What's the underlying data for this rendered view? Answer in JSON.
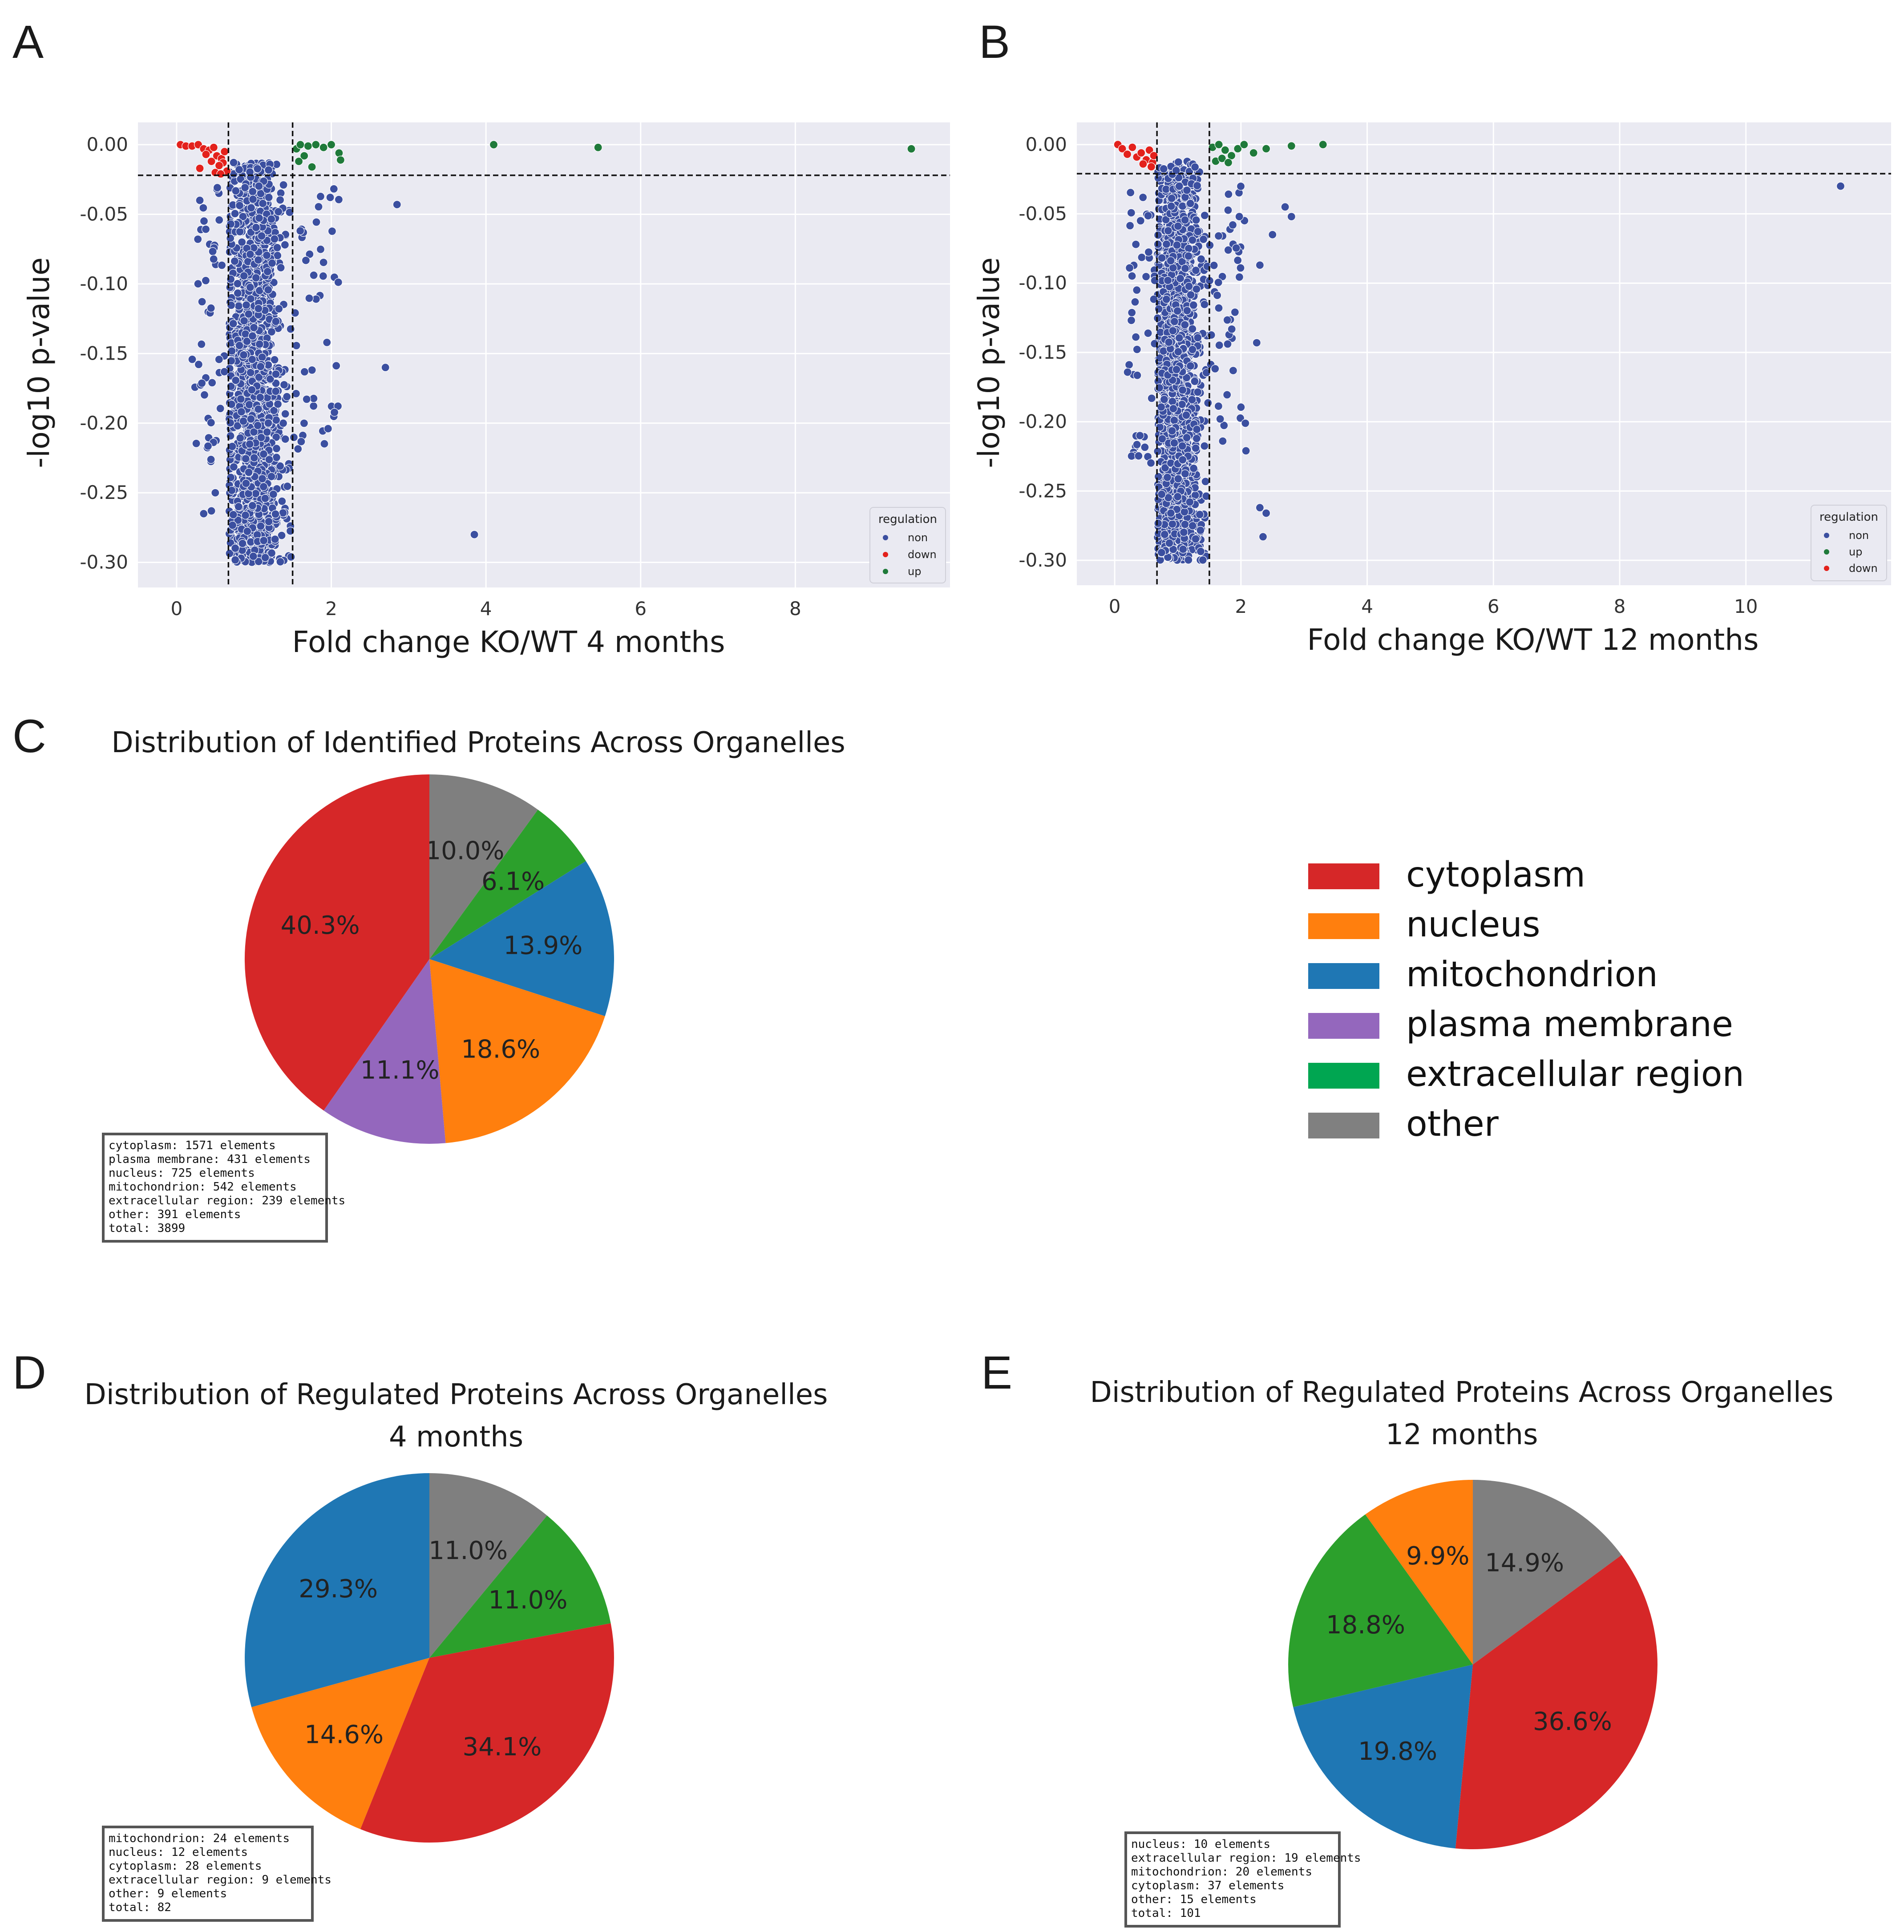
{
  "panel_letters": [
    "A",
    "B",
    "C",
    "D",
    "E"
  ],
  "chart_data": [
    {
      "id": "A",
      "type": "scatter",
      "xlabel": "Fold change KO/WT 4 months",
      "ylabel": "-log10 p-value",
      "xlim": [
        -0.5,
        10.0
      ],
      "ylim": [
        -0.318,
        0.016
      ],
      "xticks": [
        0,
        2,
        4,
        6,
        8
      ],
      "xtick_labels": [
        "0",
        "2",
        "4",
        "6",
        "8"
      ],
      "yticks": [
        0.0,
        -0.05,
        -0.1,
        -0.15,
        -0.2,
        -0.25,
        -0.3
      ],
      "ytick_labels": [
        "0.00",
        "-0.05",
        "-0.10",
        "-0.15",
        "-0.20",
        "-0.25",
        "-0.30"
      ],
      "thresholds": {
        "x_low": 0.67,
        "x_high": 1.5,
        "y": -0.022
      },
      "legend": {
        "title": "regulation",
        "entries": [
          "non",
          "down",
          "up"
        ],
        "position": "lower-right"
      },
      "series": [
        {
          "name": "non",
          "color": "#3b4fa0"
        },
        {
          "name": "down",
          "color": "#e3211c",
          "points": [
            [
              0.05,
              0.0
            ],
            [
              0.12,
              -0.001
            ],
            [
              0.2,
              -0.001
            ],
            [
              0.28,
              0.0
            ],
            [
              0.35,
              -0.003
            ],
            [
              0.42,
              -0.004
            ],
            [
              0.48,
              -0.002
            ],
            [
              0.52,
              -0.008
            ],
            [
              0.58,
              -0.01
            ],
            [
              0.6,
              -0.013
            ],
            [
              0.55,
              -0.015
            ],
            [
              0.45,
              -0.012
            ],
            [
              0.38,
              -0.007
            ],
            [
              0.62,
              -0.005
            ],
            [
              0.65,
              -0.019
            ],
            [
              0.3,
              -0.017
            ],
            [
              0.5,
              -0.02
            ],
            [
              0.57,
              -0.021
            ]
          ]
        },
        {
          "name": "up",
          "color": "#1f7a3a",
          "points": [
            [
              1.55,
              -0.003
            ],
            [
              1.6,
              0.0
            ],
            [
              1.7,
              -0.001
            ],
            [
              1.8,
              0.0
            ],
            [
              1.9,
              -0.002
            ],
            [
              2.0,
              0.0
            ],
            [
              2.1,
              -0.006
            ],
            [
              2.12,
              -0.011
            ],
            [
              1.65,
              -0.008
            ],
            [
              1.75,
              -0.016
            ],
            [
              1.58,
              -0.012
            ],
            [
              4.1,
              0.0
            ],
            [
              5.45,
              -0.002
            ],
            [
              9.5,
              -0.003
            ]
          ]
        }
      ],
      "non_extra_points": [
        [
          2.85,
          -0.043
        ],
        [
          2.7,
          -0.16
        ],
        [
          3.85,
          -0.28
        ],
        [
          0.35,
          -0.265
        ],
        [
          0.45,
          -0.263
        ],
        [
          0.3,
          -0.04
        ],
        [
          0.5,
          -0.25
        ]
      ]
    },
    {
      "id": "B",
      "type": "scatter",
      "xlabel": "Fold change KO/WT 12 months",
      "ylabel": "-log10 p-value",
      "xlim": [
        -0.6,
        12.3
      ],
      "ylim": [
        -0.318,
        0.016
      ],
      "xticks": [
        0,
        2,
        4,
        6,
        8,
        10
      ],
      "xtick_labels": [
        "0",
        "2",
        "4",
        "6",
        "8",
        "10"
      ],
      "yticks": [
        0.0,
        -0.05,
        -0.1,
        -0.15,
        -0.2,
        -0.25,
        -0.3
      ],
      "ytick_labels": [
        "0.00",
        "-0.05",
        "-0.10",
        "-0.15",
        "-0.20",
        "-0.25",
        "-0.30"
      ],
      "thresholds": {
        "x_low": 0.67,
        "x_high": 1.5,
        "y": -0.021
      },
      "legend": {
        "title": "regulation",
        "entries": [
          "non",
          "up",
          "down"
        ],
        "position": "lower-right"
      },
      "series": [
        {
          "name": "non",
          "color": "#3b4fa0"
        },
        {
          "name": "up",
          "color": "#1f7a3a",
          "points": [
            [
              1.55,
              -0.002
            ],
            [
              1.65,
              0.0
            ],
            [
              1.75,
              -0.004
            ],
            [
              1.85,
              -0.008
            ],
            [
              1.95,
              -0.003
            ],
            [
              2.05,
              0.0
            ],
            [
              2.2,
              -0.006
            ],
            [
              2.4,
              -0.003
            ],
            [
              1.6,
              -0.012
            ],
            [
              1.7,
              -0.01
            ],
            [
              1.8,
              -0.013
            ],
            [
              2.8,
              -0.001
            ],
            [
              3.3,
              0.0
            ]
          ]
        },
        {
          "name": "down",
          "color": "#e3211c",
          "points": [
            [
              0.05,
              0.0
            ],
            [
              0.12,
              -0.003
            ],
            [
              0.2,
              -0.007
            ],
            [
              0.28,
              -0.002
            ],
            [
              0.35,
              -0.009
            ],
            [
              0.42,
              -0.006
            ],
            [
              0.5,
              -0.011
            ],
            [
              0.55,
              -0.004
            ],
            [
              0.6,
              -0.013
            ],
            [
              0.62,
              -0.008
            ],
            [
              0.45,
              -0.014
            ],
            [
              0.58,
              -0.016
            ]
          ]
        }
      ],
      "non_extra_points": [
        [
          11.5,
          -0.03
        ],
        [
          2.3,
          -0.262
        ],
        [
          2.4,
          -0.266
        ],
        [
          2.35,
          -0.283
        ],
        [
          2.7,
          -0.045
        ],
        [
          2.8,
          -0.052
        ],
        [
          2.5,
          -0.065
        ],
        [
          2.3,
          -0.087
        ],
        [
          2.25,
          -0.143
        ],
        [
          0.35,
          -0.105
        ],
        [
          0.4,
          -0.21
        ]
      ]
    },
    {
      "id": "C",
      "type": "pie",
      "title": "Distribution of Identified Proteins Across Organelles",
      "slices": [
        {
          "name": "other",
          "value": 10.0,
          "label": "10.0%",
          "color": "#7f7f7f"
        },
        {
          "name": "extracellular region",
          "value": 6.1,
          "label": "6.1%",
          "color": "#2ca02c"
        },
        {
          "name": "mitochondrion",
          "value": 13.9,
          "label": "13.9%",
          "color": "#1f77b4"
        },
        {
          "name": "nucleus",
          "value": 18.6,
          "label": "18.6%",
          "color": "#ff7f0e"
        },
        {
          "name": "plasma membrane",
          "value": 11.1,
          "label": "11.1%",
          "color": "#9467bd"
        },
        {
          "name": "cytoplasm",
          "value": 40.3,
          "label": "40.3%",
          "color": "#d62728"
        }
      ],
      "info_lines": [
        "cytoplasm: 1571 elements",
        "plasma membrane: 431 elements",
        "nucleus: 725 elements",
        "mitochondrion: 542 elements",
        "extracellular region: 239 elements",
        "other: 391 elements",
        "total: 3899"
      ]
    },
    {
      "id": "D",
      "type": "pie",
      "title": "Distribution of Regulated Proteins Across Organelles",
      "subtitle": "4 months",
      "slices": [
        {
          "name": "other",
          "value": 11.0,
          "label": "11.0%",
          "color": "#7f7f7f"
        },
        {
          "name": "extracellular region",
          "value": 11.0,
          "label": "11.0%",
          "color": "#2ca02c"
        },
        {
          "name": "cytoplasm",
          "value": 34.1,
          "label": "34.1%",
          "color": "#d62728"
        },
        {
          "name": "nucleus",
          "value": 14.6,
          "label": "14.6%",
          "color": "#ff7f0e"
        },
        {
          "name": "mitochondrion",
          "value": 29.3,
          "label": "29.3%",
          "color": "#1f77b4"
        }
      ],
      "info_lines": [
        "mitochondrion: 24 elements",
        "nucleus: 12 elements",
        "cytoplasm: 28 elements",
        "extracellular region: 9 elements",
        "other: 9 elements",
        "total: 82"
      ]
    },
    {
      "id": "E",
      "type": "pie",
      "title": "Distribution of Regulated Proteins Across Organelles",
      "subtitle": "12 months",
      "slices": [
        {
          "name": "other",
          "value": 14.9,
          "label": "14.9%",
          "color": "#7f7f7f"
        },
        {
          "name": "cytoplasm",
          "value": 36.6,
          "label": "36.6%",
          "color": "#d62728"
        },
        {
          "name": "mitochondrion",
          "value": 19.8,
          "label": "19.8%",
          "color": "#1f77b4"
        },
        {
          "name": "extracellular region",
          "value": 18.8,
          "label": "18.8%",
          "color": "#2ca02c"
        },
        {
          "name": "nucleus",
          "value": 9.9,
          "label": "9.9%",
          "color": "#ff7f0e"
        }
      ],
      "info_lines": [
        "nucleus: 10 elements",
        "extracellular region: 19 elements",
        "mitochondrion: 20 elements",
        "cytoplasm: 37 elements",
        "other: 15 elements",
        "total: 101"
      ]
    }
  ],
  "organelle_legend": [
    {
      "label": "cytoplasm",
      "color": "#d62728"
    },
    {
      "label": "nucleus",
      "color": "#ff7f0e"
    },
    {
      "label": "mitochondrion",
      "color": "#1f77b4"
    },
    {
      "label": "plasma membrane",
      "color": "#9467bd"
    },
    {
      "label": "extracellular region",
      "color": "#00a651"
    },
    {
      "label": "other",
      "color": "#808080"
    }
  ]
}
